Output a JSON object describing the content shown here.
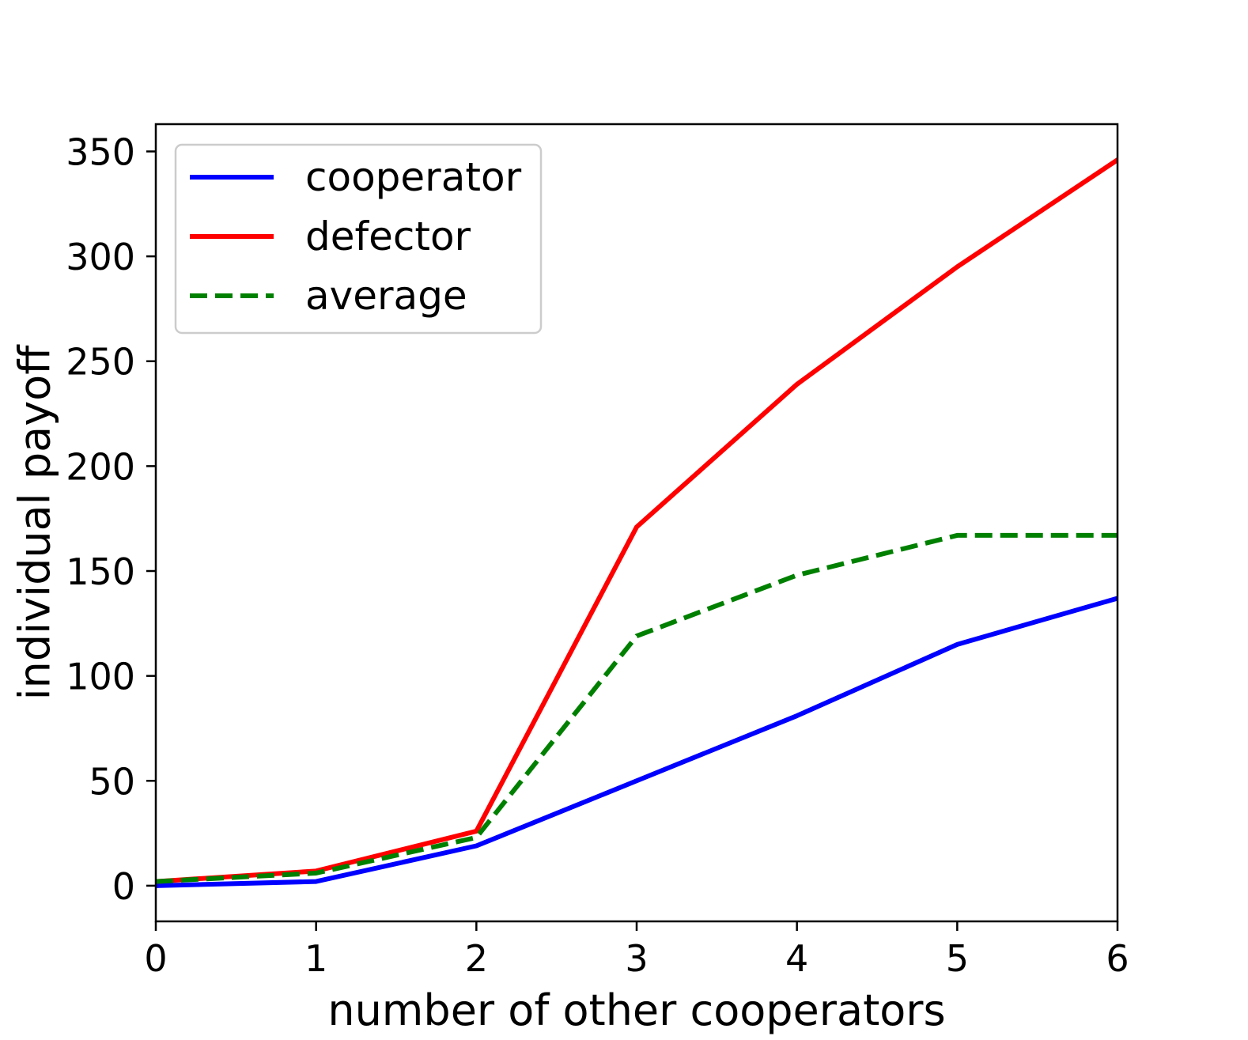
{
  "chart_data": {
    "type": "line",
    "xlabel": "number of other cooperators",
    "ylabel": "individual payoff",
    "xlim": [
      0,
      6
    ],
    "ylim": [
      -17,
      363
    ],
    "x_ticks": [
      0,
      1,
      2,
      3,
      4,
      5,
      6
    ],
    "y_ticks": [
      0,
      50,
      100,
      150,
      200,
      250,
      300,
      350
    ],
    "grid": false,
    "legend": {
      "location": "upper-left"
    },
    "x": [
      0,
      1,
      2,
      3,
      4,
      5,
      6
    ],
    "series": [
      {
        "name": "cooperator",
        "color": "#0000ff",
        "style": "solid",
        "values": [
          0,
          2,
          19,
          50,
          81,
          115,
          137
        ]
      },
      {
        "name": "defector",
        "color": "#ff0000",
        "style": "solid",
        "values": [
          2,
          7,
          26,
          171,
          239,
          295,
          346
        ]
      },
      {
        "name": "average",
        "color": "#008000",
        "style": "dashed",
        "values": [
          2,
          6,
          23,
          119,
          148,
          167,
          167
        ]
      }
    ]
  }
}
